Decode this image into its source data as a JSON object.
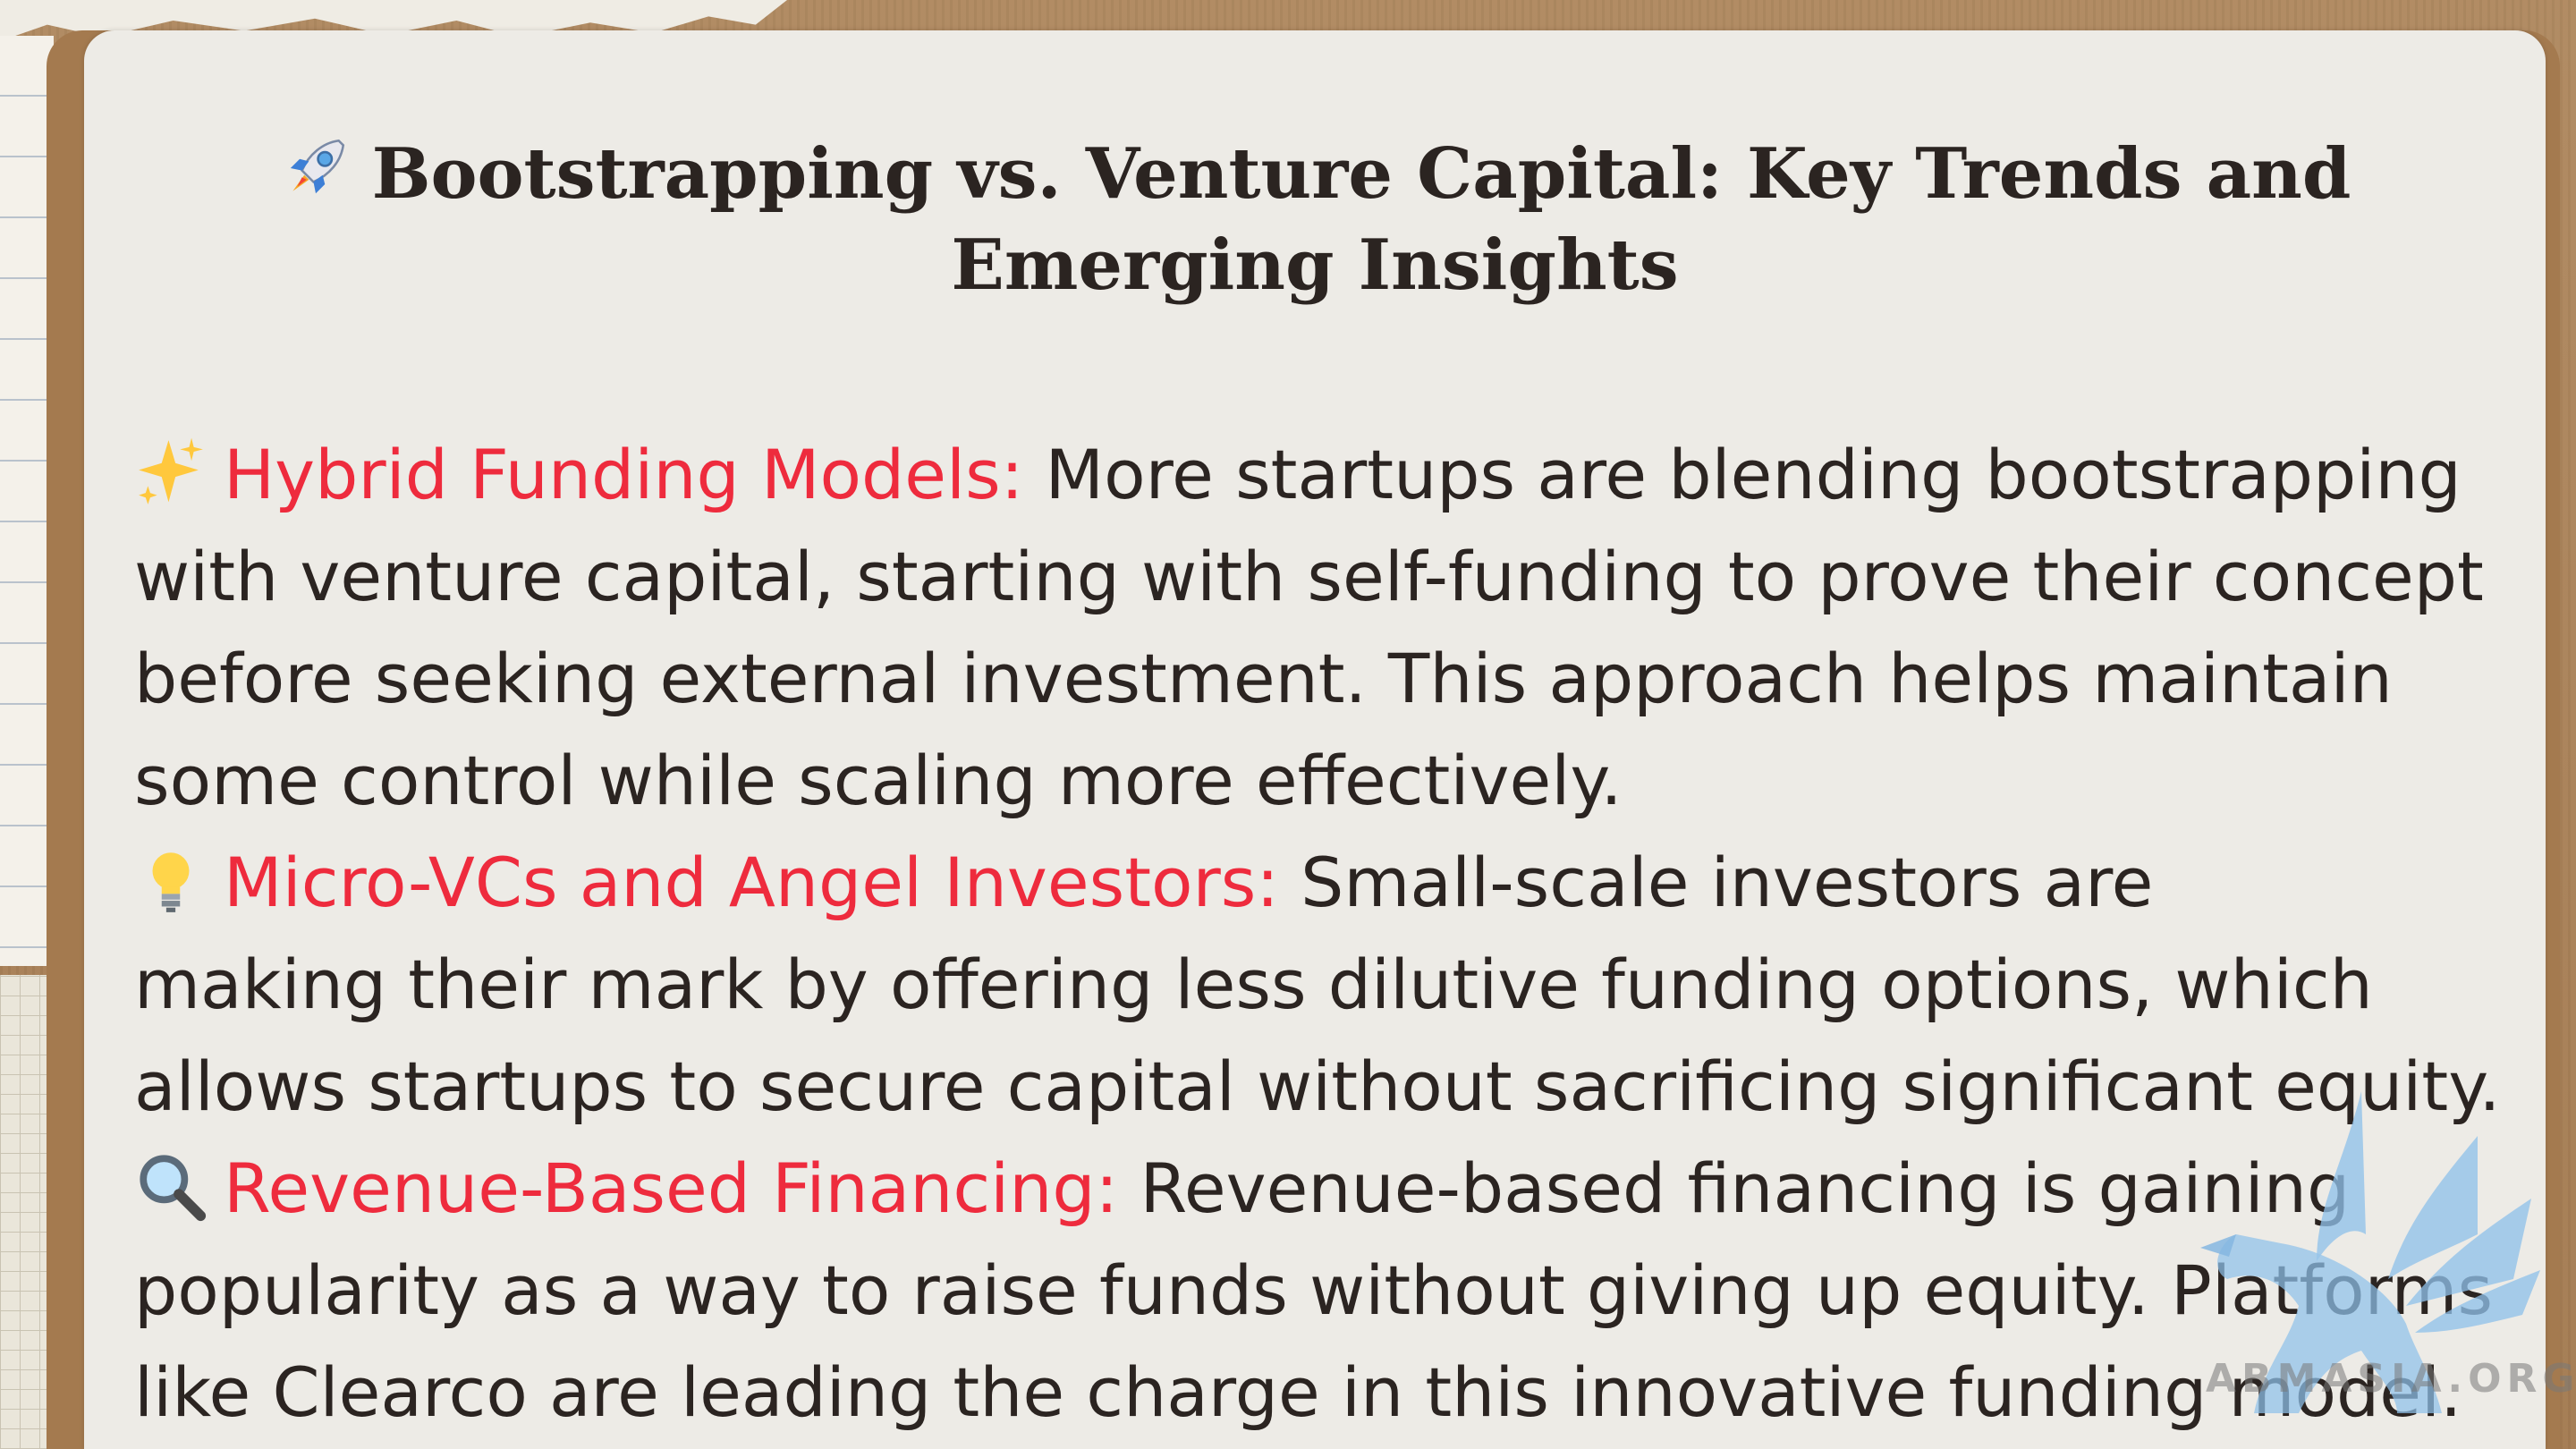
{
  "title": {
    "icon": "rocket-icon",
    "line1": "Bootstrapping vs. Venture Capital: Key Trends and",
    "line2": "Emerging Insights"
  },
  "sections": [
    {
      "icon": "sparkles-icon",
      "heading": "Hybrid Funding Models:",
      "lines": [
        "More startups are blending bootstrapping",
        "with venture capital, starting with self-funding to prove their concept",
        "before seeking external investment. This approach helps maintain",
        "some control while scaling more effectively."
      ]
    },
    {
      "icon": "light-bulb-icon",
      "heading": "Micro-VCs and Angel Investors:",
      "lines": [
        "Small-scale investors are",
        "making their mark by offering less dilutive funding options, which",
        "allows startups to secure capital without sacrificing significant equity."
      ]
    },
    {
      "icon": "magnifying-glass-icon",
      "heading": "Revenue-Based Financing:",
      "lines": [
        "Revenue-based financing is gaining",
        "popularity as a way to raise funds without giving up equity. Platforms",
        "like Clearco are leading the charge in this innovative funding model."
      ]
    }
  ],
  "watermark": {
    "icon": "griffin-logo-icon",
    "text": "ABMASIA.ORG"
  },
  "colors": {
    "heading": "#ee2b3d",
    "body_text": "#2b2421",
    "card": "#edebe6",
    "frame": "#a47a4f"
  }
}
